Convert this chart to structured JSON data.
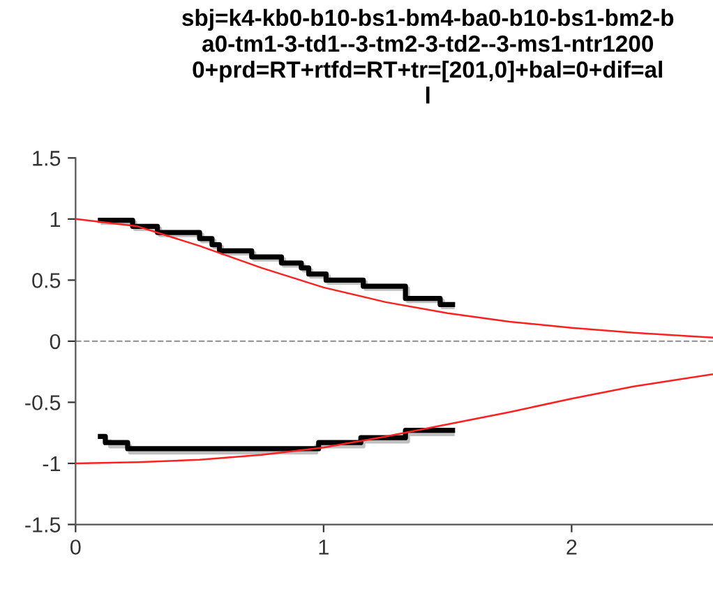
{
  "chart_data": {
    "type": "step",
    "title": "sbj=k4-kb0-b10-bs1-bm4-ba0-b10-bs1-bm2-b\na0-tm1-3-td1--3-tm2-3-td2--3-ms1-ntr1200\n0+prd=RT+rtfd=RT+tr=[201,0]+bal=0+dif=al\nl",
    "xlim": [
      0,
      2.57
    ],
    "xticks": [
      0,
      1,
      2
    ],
    "ylim": [
      -1.5,
      1.5
    ],
    "yticks": [
      -1.5,
      -1,
      -0.5,
      0,
      0.5,
      1,
      1.5
    ],
    "grid": false,
    "legend": false,
    "ref_lines": [
      {
        "axis": "y",
        "value": 0,
        "color": "#999999",
        "line_style": "dashed"
      }
    ],
    "series": [
      {
        "color": "#c0c0c0",
        "x": [
          0.11,
          0.24,
          0.34,
          0.51,
          0.56,
          0.59,
          0.72,
          0.84,
          0.92,
          0.95,
          1.02,
          1.17,
          1.34,
          1.48,
          1.52
        ],
        "values": [
          0.97,
          0.92,
          0.87,
          0.82,
          0.77,
          0.72,
          0.67,
          0.62,
          0.58,
          0.53,
          0.48,
          0.43,
          0.33,
          0.28,
          0.28
        ]
      },
      {
        "color": "#c0c0c0",
        "x": [
          0.12,
          0.14,
          0.22,
          0.97,
          1.16,
          1.34,
          1.52
        ],
        "values": [
          -0.82,
          -0.86,
          -0.91,
          -0.86,
          -0.82,
          -0.76,
          -0.76
        ]
      },
      {
        "type": "line",
        "color": "#ff2020",
        "x": [
          0,
          0.25,
          0.5,
          0.75,
          1,
          1.25,
          1.5,
          1.75,
          2,
          2.25,
          2.57
        ],
        "values": [
          1.0,
          0.94,
          0.78,
          0.6,
          0.44,
          0.32,
          0.23,
          0.16,
          0.11,
          0.07,
          0.03
        ]
      },
      {
        "type": "line",
        "color": "#ff2020",
        "x": [
          0,
          0.25,
          0.5,
          0.75,
          1,
          1.25,
          1.5,
          1.75,
          2,
          2.25,
          2.57
        ],
        "values": [
          -1.0,
          -0.99,
          -0.97,
          -0.93,
          -0.87,
          -0.78,
          -0.68,
          -0.58,
          -0.47,
          -0.37,
          -0.27
        ]
      },
      {
        "color": "#000000",
        "x": [
          0.1,
          0.23,
          0.33,
          0.5,
          0.55,
          0.58,
          0.71,
          0.83,
          0.91,
          0.94,
          1.01,
          1.16,
          1.33,
          1.47,
          1.52
        ],
        "values": [
          0.99,
          0.94,
          0.89,
          0.84,
          0.79,
          0.74,
          0.69,
          0.64,
          0.6,
          0.55,
          0.5,
          0.45,
          0.35,
          0.3,
          0.3
        ]
      },
      {
        "color": "#000000",
        "x": [
          0.1,
          0.12,
          0.21,
          0.98,
          1.15,
          1.33,
          1.52
        ],
        "values": [
          -0.78,
          -0.83,
          -0.88,
          -0.83,
          -0.79,
          -0.73,
          -0.73
        ]
      }
    ]
  }
}
